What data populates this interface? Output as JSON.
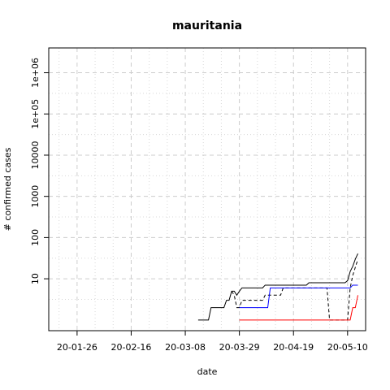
{
  "chart_data": {
    "type": "line",
    "title": "mauritania",
    "xlabel": "date",
    "ylabel": "# confirmed cases",
    "x_scale": "date",
    "y_scale": "log",
    "xlim": [
      "2020-01-15",
      "2020-05-17"
    ],
    "ylim": [
      0.55,
      4000000
    ],
    "x_ticks": [
      "20-01-26",
      "20-02-16",
      "20-03-08",
      "20-03-29",
      "20-04-19",
      "20-05-10"
    ],
    "y_ticks": [
      "10",
      "100",
      "1000",
      "10000",
      "1e+05",
      "1e+06"
    ],
    "grid": true,
    "series": [
      {
        "color": "#000000",
        "dash": "solid",
        "points": [
          [
            "2020-03-13",
            1
          ],
          [
            "2020-03-17",
            1
          ],
          [
            "2020-03-18",
            2
          ],
          [
            "2020-03-23",
            2
          ],
          [
            "2020-03-24",
            3
          ],
          [
            "2020-03-25",
            3
          ],
          [
            "2020-03-26",
            5
          ],
          [
            "2020-03-27",
            5
          ],
          [
            "2020-03-28",
            4
          ],
          [
            "2020-03-29",
            5
          ],
          [
            "2020-03-30",
            6
          ],
          [
            "2020-04-07",
            6
          ],
          [
            "2020-04-08",
            7
          ],
          [
            "2020-04-24",
            7
          ],
          [
            "2020-04-25",
            8
          ],
          [
            "2020-05-09",
            8
          ],
          [
            "2020-05-10",
            9
          ],
          [
            "2020-05-11",
            15
          ],
          [
            "2020-05-12",
            20
          ],
          [
            "2020-05-13",
            30
          ],
          [
            "2020-05-14",
            41
          ]
        ]
      },
      {
        "color": "#000000",
        "dash": "dashed",
        "points": [
          [
            "2020-03-26",
            5
          ],
          [
            "2020-03-27",
            4
          ],
          [
            "2020-03-28",
            2
          ],
          [
            "2020-03-29",
            2
          ],
          [
            "2020-03-30",
            3
          ],
          [
            "2020-04-07",
            3
          ],
          [
            "2020-04-08",
            4
          ],
          [
            "2020-04-14",
            4
          ],
          [
            "2020-04-15",
            6
          ],
          [
            "2020-05-02",
            6
          ],
          [
            "2020-05-03",
            1
          ],
          [
            "2020-05-09",
            1
          ],
          [
            "2020-05-10",
            1
          ],
          [
            "2020-05-11",
            6
          ],
          [
            "2020-05-12",
            12
          ],
          [
            "2020-05-14",
            30
          ]
        ]
      },
      {
        "color": "#0000ff",
        "dash": "solid",
        "points": [
          [
            "2020-03-29",
            2
          ],
          [
            "2020-04-09",
            2
          ],
          [
            "2020-04-10",
            6
          ],
          [
            "2020-05-11",
            6
          ],
          [
            "2020-05-12",
            7
          ],
          [
            "2020-05-14",
            7
          ]
        ]
      },
      {
        "color": "#ff0000",
        "dash": "solid",
        "points": [
          [
            "2020-03-29",
            1
          ],
          [
            "2020-05-11",
            1
          ],
          [
            "2020-05-12",
            2
          ],
          [
            "2020-05-13",
            2
          ],
          [
            "2020-05-14",
            4
          ]
        ]
      }
    ]
  }
}
